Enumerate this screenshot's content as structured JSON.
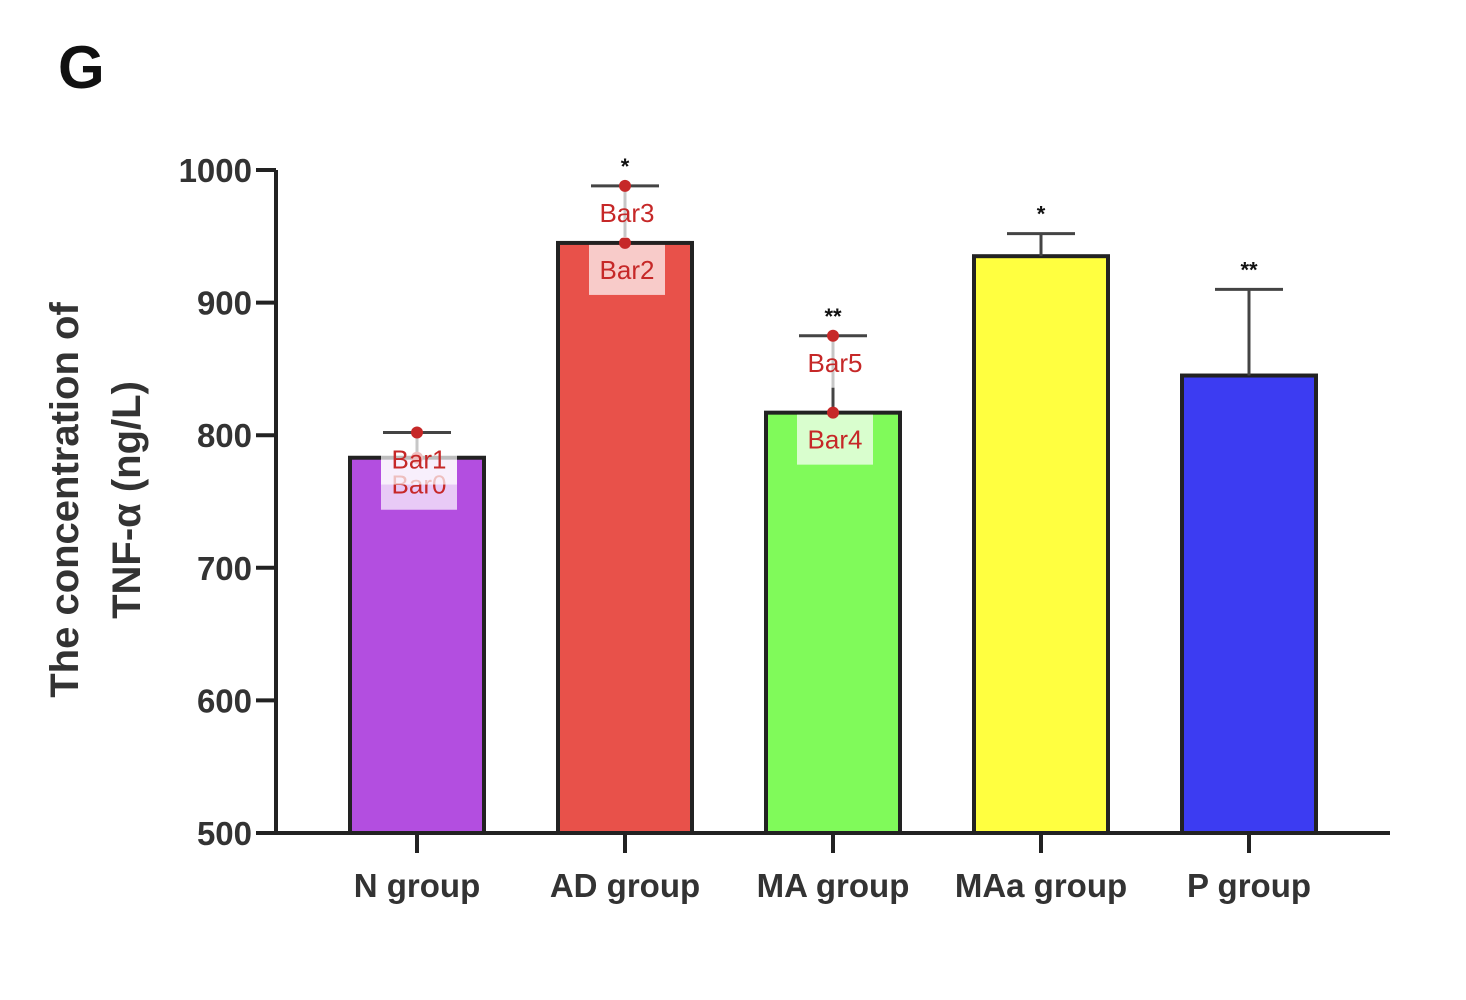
{
  "panel_label": "G",
  "chart_data": {
    "type": "bar",
    "title": "",
    "xlabel": "",
    "ylabel_lines": [
      "The concentration of",
      "TNF-α (ng/L)"
    ],
    "ylim": [
      500,
      1000
    ],
    "yticks": [
      500,
      600,
      700,
      800,
      900,
      1000
    ],
    "ytick_labels": [
      "500",
      "600",
      "700",
      "800",
      "900",
      "1000"
    ],
    "categories": [
      "N group",
      "AD group",
      "MA group",
      "MAa group",
      "P group"
    ],
    "values": [
      783,
      945,
      817,
      935,
      845
    ],
    "error_upper": [
      802,
      988,
      875,
      952,
      910
    ],
    "significance": [
      "",
      "*",
      "**",
      "*",
      "**"
    ],
    "colors": [
      "#b34ee0",
      "#e8514a",
      "#80fa5a",
      "#ffff40",
      "#3c3cf2"
    ],
    "grid": false,
    "legend": "none",
    "annotations": [
      {
        "label": "Bar0",
        "category": 0,
        "value": 783
      },
      {
        "label": "Bar1",
        "category": 0,
        "value": 802
      },
      {
        "label": "Bar2",
        "category": 1,
        "value": 945
      },
      {
        "label": "Bar3",
        "category": 1,
        "value": 988
      },
      {
        "label": "Bar4",
        "category": 2,
        "value": 817
      },
      {
        "label": "Bar5",
        "category": 2,
        "value": 875
      }
    ]
  }
}
